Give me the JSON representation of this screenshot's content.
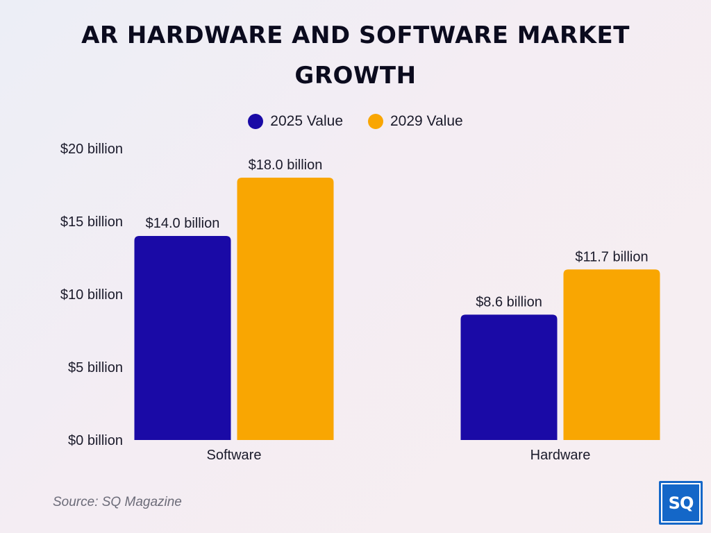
{
  "chart_data": {
    "type": "bar",
    "title_lines": [
      "AR HARDWARE AND SOFTWARE MARKET",
      "GROWTH"
    ],
    "categories": [
      "Software",
      "Hardware"
    ],
    "series": [
      {
        "name": "2025 Value",
        "color": "#1a0aa6",
        "values": [
          14.0,
          8.6
        ],
        "labels": [
          "$14.0 billion",
          "$8.6 billion"
        ]
      },
      {
        "name": "2029 Value",
        "color": "#f9a602",
        "values": [
          18.0,
          11.7
        ],
        "labels": [
          "$18.0 billion",
          "$11.7 billion"
        ]
      }
    ],
    "y_ticks": [
      {
        "value": 0,
        "label": "$0 billion"
      },
      {
        "value": 5,
        "label": "$5 billion"
      },
      {
        "value": 10,
        "label": "$10 billion"
      },
      {
        "value": 15,
        "label": "$15 billion"
      },
      {
        "value": 20,
        "label": "$20 billion"
      }
    ],
    "ylim": [
      0,
      20
    ],
    "grid": false,
    "legend_position": "top-center"
  },
  "source": "Source: SQ Magazine",
  "logo_text": "SQ",
  "logo_color": "#1467c8"
}
